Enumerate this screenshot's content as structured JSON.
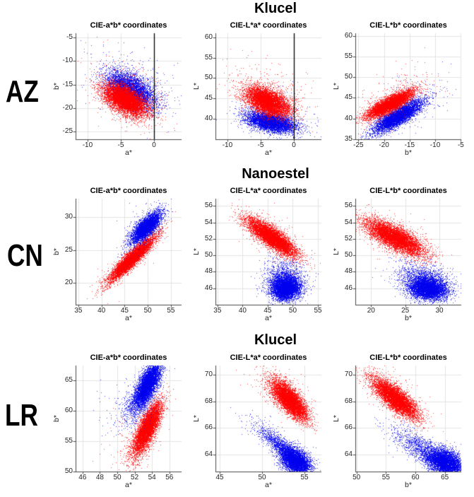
{
  "figure_title_rows": [
    "Klucel",
    "Nanoestel",
    "Klucel"
  ],
  "row_labels": [
    "AZ",
    "CN",
    "LR"
  ],
  "style": {
    "red": "#ff0000",
    "blue": "#0000ee",
    "grid_color": "#e3e3e3",
    "axis_color": "#4a4a4a",
    "zero_line_color": "#000000",
    "tick_text_color": "#262626",
    "title_text_color": "#000000",
    "point_alpha": 0.7
  },
  "chart_data": [
    {
      "type": "scatter",
      "row_label": "AZ",
      "group_title": "Klucel",
      "title": "CIE-a*b* coordinates",
      "xlabel": "a*",
      "ylabel": "b*",
      "xlim": [
        -11.8,
        4.15
      ],
      "ylim": [
        -26.65,
        -4.1
      ],
      "xticks": [
        -10,
        -5,
        0
      ],
      "yticks": [
        -25,
        -20,
        -15,
        -10,
        -5
      ],
      "grid": true,
      "zero_line_x": 0,
      "series": [
        {
          "name": "blue",
          "color": "#0000ee",
          "clusters": [
            {
              "cx": -3.5,
              "cy": -16.1,
              "sx": 1.8,
              "sy": 2.0,
              "rho": -0.5,
              "n": 5000
            },
            {
              "cx": -3.2,
              "cy": -14.8,
              "sx": 3.4,
              "sy": 4.0,
              "rho": -0.35,
              "n": 280
            }
          ]
        },
        {
          "name": "red",
          "color": "#ff0000",
          "clusters": [
            {
              "cx": -4.4,
              "cy": -18.3,
              "sx": 1.65,
              "sy": 1.75,
              "rho": -0.55,
              "n": 7000
            },
            {
              "cx": -4.0,
              "cy": -16.8,
              "sx": 3.2,
              "sy": 4.2,
              "rho": -0.35,
              "n": 300
            }
          ]
        }
      ]
    },
    {
      "type": "scatter",
      "row_label": "AZ",
      "group_title": "Klucel",
      "title": "CIE-L*a* coordinates",
      "xlabel": "a*",
      "ylabel": "L*",
      "xlim": [
        -11.8,
        4.15
      ],
      "ylim": [
        34.96,
        61.04
      ],
      "xticks": [
        -10,
        -5,
        0
      ],
      "yticks": [
        40,
        45,
        50,
        55,
        60
      ],
      "grid": true,
      "zero_line_x": 0,
      "series": [
        {
          "name": "blue",
          "color": "#0000ee",
          "clusters": [
            {
              "cx": -3.5,
              "cy": 39.2,
              "sx": 1.8,
              "sy": 1.25,
              "rho": -0.45,
              "n": 5500
            },
            {
              "cx": -3.2,
              "cy": 40.8,
              "sx": 3.4,
              "sy": 3.2,
              "rho": -0.3,
              "n": 250
            }
          ]
        },
        {
          "name": "red",
          "color": "#ff0000",
          "clusters": [
            {
              "cx": -4.0,
              "cy": 44.3,
              "sx": 1.65,
              "sy": 1.8,
              "rho": -0.5,
              "n": 7000
            },
            {
              "cx": -3.8,
              "cy": 46.5,
              "sx": 3.2,
              "sy": 4.0,
              "rho": -0.35,
              "n": 300
            }
          ]
        }
      ]
    },
    {
      "type": "scatter",
      "row_label": "AZ",
      "group_title": "Klucel",
      "title": "CIE-L*b* coordinates",
      "xlabel": "b*",
      "ylabel": "L*",
      "xlim": [
        -25.6,
        -4.9
      ],
      "ylim": [
        35,
        60.6
      ],
      "xticks": [
        -25,
        -20,
        -15,
        -10,
        -5
      ],
      "yticks": [
        35,
        40,
        45,
        50,
        55,
        60
      ],
      "grid": true,
      "zero_line_x": null,
      "series": [
        {
          "name": "blue",
          "color": "#0000ee",
          "clusters": [
            {
              "cx": -17.4,
              "cy": 40.5,
              "sx": 2.3,
              "sy": 1.9,
              "rho": 0.83,
              "n": 6000
            },
            {
              "cx": -15.5,
              "cy": 43.0,
              "sx": 3.6,
              "sy": 3.4,
              "rho": 0.55,
              "n": 260
            }
          ]
        },
        {
          "name": "red",
          "color": "#ff0000",
          "clusters": [
            {
              "cx": -18.9,
              "cy": 43.5,
              "sx": 2.2,
              "sy": 1.6,
              "rho": 0.82,
              "n": 6500
            },
            {
              "cx": -18.0,
              "cy": 45.5,
              "sx": 3.6,
              "sy": 3.4,
              "rho": 0.5,
              "n": 260
            }
          ]
        }
      ]
    },
    {
      "type": "scatter",
      "row_label": "CN",
      "group_title": "Nanoestel",
      "title": "CIE-a*b* coordinates",
      "xlabel": "a*",
      "ylabel": "b*",
      "xlim": [
        34.4,
        57.3
      ],
      "ylim": [
        16.7,
        32.8
      ],
      "xticks": [
        35,
        40,
        45,
        50,
        55
      ],
      "yticks": [
        20,
        25,
        30
      ],
      "grid": true,
      "zero_line_x": null,
      "series": [
        {
          "name": "red",
          "color": "#ff0000",
          "clusters": [
            {
              "cx": 46.5,
              "cy": 23.7,
              "sx": 2.4,
              "sy": 1.65,
              "rho": 0.93,
              "n": 7000
            },
            {
              "cx": 45.8,
              "cy": 23.5,
              "sx": 3.2,
              "sy": 2.3,
              "rho": 0.8,
              "n": 300
            }
          ]
        },
        {
          "name": "blue",
          "color": "#0000ee",
          "clusters": [
            {
              "cx": 49.6,
              "cy": 28.5,
              "sx": 1.6,
              "sy": 1.15,
              "rho": 0.75,
              "n": 5000
            },
            {
              "cx": 48.8,
              "cy": 28.2,
              "sx": 2.6,
              "sy": 1.9,
              "rho": 0.55,
              "n": 250
            }
          ]
        }
      ]
    },
    {
      "type": "scatter",
      "row_label": "CN",
      "group_title": "Nanoestel",
      "title": "CIE-L*a* coordinates",
      "xlabel": "a*",
      "ylabel": "L*",
      "xlim": [
        34.6,
        55.7
      ],
      "ylim": [
        44,
        56.9
      ],
      "xticks": [
        35,
        40,
        45,
        50,
        55
      ],
      "yticks": [
        46,
        48,
        50,
        52,
        54,
        56
      ],
      "grid": true,
      "zero_line_x": null,
      "series": [
        {
          "name": "blue",
          "color": "#0000ee",
          "clusters": [
            {
              "cx": 48.6,
              "cy": 45.9,
              "sx": 1.3,
              "sy": 0.6,
              "rho": 0.1,
              "n": 4500
            },
            {
              "cx": 48.4,
              "cy": 46.5,
              "sx": 1.7,
              "sy": 0.9,
              "rho": 0.0,
              "n": 2000
            },
            {
              "cx": 48.2,
              "cy": 47.6,
              "sx": 2.0,
              "sy": 1.2,
              "rho": 0.0,
              "n": 800
            }
          ]
        },
        {
          "name": "red",
          "color": "#ff0000",
          "clusters": [
            {
              "cx": 45.8,
              "cy": 52.2,
              "sx": 2.4,
              "sy": 1.1,
              "rho": -0.83,
              "n": 7000
            },
            {
              "cx": 45.2,
              "cy": 52.6,
              "sx": 3.2,
              "sy": 1.6,
              "rho": -0.6,
              "n": 300
            }
          ]
        }
      ]
    },
    {
      "type": "scatter",
      "row_label": "CN",
      "group_title": "Nanoestel",
      "title": "CIE-L*b* coordinates",
      "xlabel": "b*",
      "ylabel": "L*",
      "xlim": [
        17.7,
        33.2
      ],
      "ylim": [
        44,
        56.9
      ],
      "xticks": [
        20,
        25,
        30
      ],
      "yticks": [
        46,
        48,
        50,
        52,
        54,
        56
      ],
      "grid": true,
      "zero_line_x": null,
      "series": [
        {
          "name": "blue",
          "color": "#0000ee",
          "clusters": [
            {
              "cx": 28.3,
              "cy": 45.9,
              "sx": 1.3,
              "sy": 0.6,
              "rho": -0.15,
              "n": 4500
            },
            {
              "cx": 28.0,
              "cy": 46.5,
              "sx": 1.7,
              "sy": 0.9,
              "rho": -0.2,
              "n": 2000
            },
            {
              "cx": 27.4,
              "cy": 47.5,
              "sx": 2.0,
              "sy": 1.1,
              "rho": -0.3,
              "n": 700
            }
          ]
        },
        {
          "name": "red",
          "color": "#ff0000",
          "clusters": [
            {
              "cx": 23.4,
              "cy": 52.2,
              "sx": 2.1,
              "sy": 1.05,
              "rho": -0.75,
              "n": 7000
            },
            {
              "cx": 23.0,
              "cy": 52.6,
              "sx": 3.0,
              "sy": 1.5,
              "rho": -0.5,
              "n": 300
            }
          ]
        }
      ]
    },
    {
      "type": "scatter",
      "row_label": "LR",
      "group_title": "Klucel",
      "title": "CIE-a*b* coordinates",
      "xlabel": "a*",
      "ylabel": "b*",
      "xlim": [
        45.2,
        57.4
      ],
      "ylim": [
        50,
        67.5
      ],
      "xticks": [
        46,
        48,
        50,
        52,
        54,
        56
      ],
      "yticks": [
        50,
        55,
        60,
        65
      ],
      "grid": true,
      "zero_line_x": null,
      "series": [
        {
          "name": "red",
          "color": "#ff0000",
          "clusters": [
            {
              "cx": 53.5,
              "cy": 57.5,
              "sx": 0.75,
              "sy": 1.9,
              "rho": 0.75,
              "n": 6000
            },
            {
              "cx": 52.6,
              "cy": 54.2,
              "sx": 0.9,
              "sy": 1.8,
              "rho": 0.6,
              "n": 700
            },
            {
              "cx": 52.2,
              "cy": 55.5,
              "sx": 1.7,
              "sy": 2.8,
              "rho": 0.4,
              "n": 150
            }
          ]
        },
        {
          "name": "blue",
          "color": "#0000ee",
          "clusters": [
            {
              "cx": 53.5,
              "cy": 64.5,
              "sx": 0.75,
              "sy": 1.8,
              "rho": 0.7,
              "n": 6000
            },
            {
              "cx": 52.4,
              "cy": 61.5,
              "sx": 1.0,
              "sy": 1.9,
              "rho": 0.6,
              "n": 700
            },
            {
              "cx": 51.6,
              "cy": 60.5,
              "sx": 1.9,
              "sy": 2.8,
              "rho": 0.4,
              "n": 150
            }
          ]
        }
      ]
    },
    {
      "type": "scatter",
      "row_label": "LR",
      "group_title": "Klucel",
      "title": "CIE-L*a* coordinates",
      "xlabel": "a*",
      "ylabel": "L*",
      "xlim": [
        44.5,
        57
      ],
      "ylim": [
        62.7,
        70.7
      ],
      "xticks": [
        45,
        50,
        55
      ],
      "yticks": [
        64,
        66,
        68,
        70
      ],
      "grid": true,
      "zero_line_x": null,
      "series": [
        {
          "name": "blue",
          "color": "#0000ee",
          "clusters": [
            {
              "cx": 53.9,
              "cy": 63.5,
              "sx": 0.85,
              "sy": 0.5,
              "rho": -0.35,
              "n": 5200
            },
            {
              "cx": 52.4,
              "cy": 64.5,
              "sx": 1.3,
              "sy": 0.7,
              "rho": -0.85,
              "n": 1300
            },
            {
              "cx": 51.0,
              "cy": 65.4,
              "sx": 1.5,
              "sy": 0.8,
              "rho": -0.8,
              "n": 250
            }
          ]
        },
        {
          "name": "red",
          "color": "#ff0000",
          "clusters": [
            {
              "cx": 53.2,
              "cy": 68.1,
              "sx": 1.05,
              "sy": 0.75,
              "rho": -0.75,
              "n": 6500
            },
            {
              "cx": 52.3,
              "cy": 68.8,
              "sx": 1.9,
              "sy": 1.0,
              "rho": -0.55,
              "n": 280
            }
          ]
        }
      ]
    },
    {
      "type": "scatter",
      "row_label": "LR",
      "group_title": "Klucel",
      "title": "CIE-L*b* coordinates",
      "xlabel": "b*",
      "ylabel": "L*",
      "xlim": [
        49.8,
        67.8
      ],
      "ylim": [
        62.7,
        70.7
      ],
      "xticks": [
        50,
        55,
        60,
        65
      ],
      "yticks": [
        64,
        66,
        68,
        70
      ],
      "grid": true,
      "zero_line_x": null,
      "series": [
        {
          "name": "blue",
          "color": "#0000ee",
          "clusters": [
            {
              "cx": 65.0,
              "cy": 63.4,
              "sx": 1.5,
              "sy": 0.5,
              "rho": -0.35,
              "n": 5200
            },
            {
              "cx": 62.0,
              "cy": 64.2,
              "sx": 2.4,
              "sy": 0.75,
              "rho": -0.8,
              "n": 1300
            },
            {
              "cx": 59.0,
              "cy": 65.0,
              "sx": 2.6,
              "sy": 0.9,
              "rho": -0.75,
              "n": 250
            }
          ]
        },
        {
          "name": "red",
          "color": "#ff0000",
          "clusters": [
            {
              "cx": 56.6,
              "cy": 68.2,
              "sx": 1.9,
              "sy": 0.75,
              "rho": -0.8,
              "n": 6500
            },
            {
              "cx": 55.8,
              "cy": 68.7,
              "sx": 2.8,
              "sy": 1.1,
              "rho": -0.6,
              "n": 280
            }
          ]
        }
      ]
    }
  ]
}
